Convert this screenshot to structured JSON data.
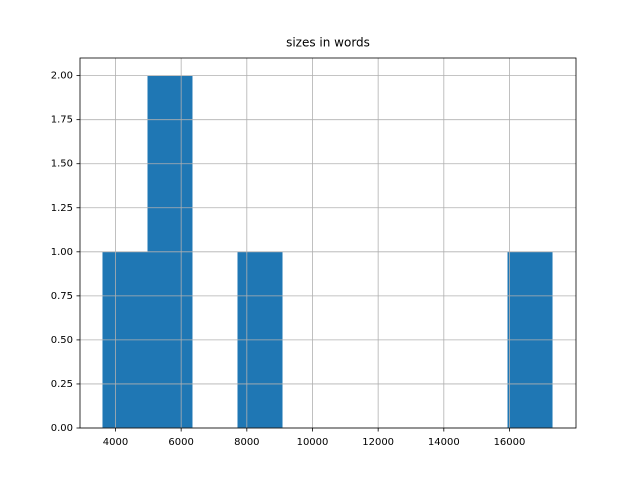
{
  "chart_data": {
    "type": "histogram",
    "title": "sizes in words",
    "bins": [
      3604,
      4975,
      6345,
      7716,
      9087,
      10457,
      11828,
      13199,
      14569,
      15940,
      17311
    ],
    "counts": [
      1,
      2,
      0,
      1,
      0,
      0,
      0,
      0,
      0,
      1
    ],
    "color": "#1f77b4",
    "xlim": [
      2919,
      18026
    ],
    "xticks": [
      4000,
      6000,
      8000,
      10000,
      12000,
      14000,
      16000
    ],
    "ylim": [
      0,
      2.1
    ],
    "yticks": [
      {
        "value": 0,
        "label": "0.00"
      },
      {
        "value": 0.25,
        "label": "0.25"
      },
      {
        "value": 0.5,
        "label": "0.50"
      },
      {
        "value": 0.75,
        "label": "0.75"
      },
      {
        "value": 1,
        "label": "1.00"
      },
      {
        "value": 1.25,
        "label": "1.25"
      },
      {
        "value": 1.5,
        "label": "1.50"
      },
      {
        "value": 1.75,
        "label": "1.75"
      },
      {
        "value": 2,
        "label": "2.00"
      }
    ],
    "grid": true
  }
}
